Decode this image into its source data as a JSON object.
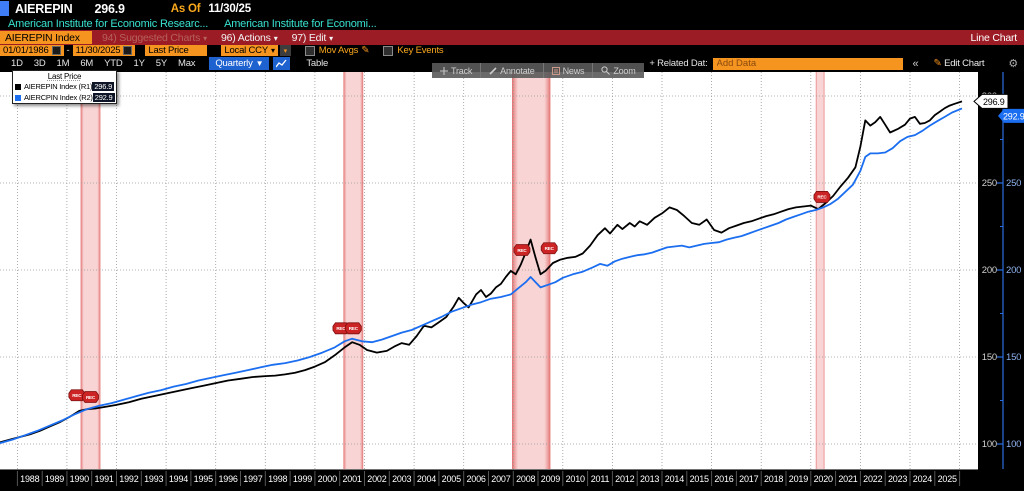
{
  "window": {
    "ticker": "AIEREPIN",
    "value": "296.9",
    "as_of_label": "As Of",
    "as_of_date": "11/30/25",
    "descriptions": [
      "American Institute for Economic Researc...",
      "American Institute for Economi..."
    ]
  },
  "menubar": {
    "security_field": "AIEREPIN Index",
    "suggested_charts": "94) Suggested Charts",
    "actions": "96) Actions",
    "edit": "97) Edit",
    "right_label": "Line Chart"
  },
  "toolbar": {
    "date_from": "01/01/1986",
    "date_separator": "-",
    "date_to": "11/30/2025",
    "field": "Last Price",
    "currency": "Local CCY",
    "mov_avgs": "Mov Avgs",
    "key_events": "Key Events"
  },
  "periods": {
    "items": [
      "1D",
      "3D",
      "1M",
      "6M",
      "YTD",
      "1Y",
      "5Y",
      "Max"
    ],
    "frequency": "Quarterly",
    "table": "Table",
    "related_label": "+ Related Dat:",
    "add_data_placeholder": "Add Data",
    "collapse": "«",
    "edit_chart": "Edit Chart"
  },
  "chart_toolbar": {
    "track": "Track",
    "annotate": "Annotate",
    "news": "News",
    "zoom": "Zoom"
  },
  "legend": {
    "title": "Last Price",
    "series": [
      {
        "label": "AIEREPIN Index  (R1)",
        "value": "296.9",
        "color": "#000000"
      },
      {
        "label": "AIERCPIN Index  (R2)",
        "value": "292.9",
        "color": "#1b6ef0"
      }
    ]
  },
  "chart_data": {
    "type": "line",
    "x_domain": [
      1987.3,
      2026.3
    ],
    "ylim": [
      87,
      312
    ],
    "y_ticks": [
      100,
      150,
      200,
      250,
      300
    ],
    "y_minor_ticks": [
      125,
      175,
      225,
      275
    ],
    "x_tick_years": [
      1988,
      1989,
      1990,
      1991,
      1992,
      1993,
      1994,
      1995,
      1996,
      1997,
      1998,
      1999,
      2000,
      2001,
      2002,
      2003,
      2004,
      2005,
      2006,
      2007,
      2008,
      2009,
      2010,
      2011,
      2012,
      2013,
      2014,
      2015,
      2016,
      2017,
      2018,
      2019,
      2020,
      2021,
      2022,
      2023,
      2024,
      2025
    ],
    "grid": "dotted",
    "legend_position": "top-left",
    "band_color": "#f2a8a8",
    "band_edge_color": "#dd5555",
    "rec_marker_label": "REC",
    "recession_bands": [
      [
        1990.55,
        1991.35
      ],
      [
        2001.15,
        2001.95
      ],
      [
        2007.95,
        2009.5
      ],
      [
        2020.2,
        2020.55
      ]
    ],
    "rec_markers": [
      [
        1990.4,
        128
      ],
      [
        1990.95,
        127
      ],
      [
        2001.05,
        166.5
      ],
      [
        2001.55,
        166.5
      ],
      [
        2008.35,
        211.5
      ],
      [
        2009.45,
        212.5
      ],
      [
        2020.45,
        242
      ]
    ],
    "axes": {
      "r1_label_color": "#cfcfcf",
      "r2_label_color": "#8fb4f0",
      "r2_axis_color": "#2b6fe0"
    },
    "series": [
      {
        "name": "AIEREPIN Index",
        "axis": "R1",
        "color": "#000000",
        "last_price": 296.9,
        "points": [
          [
            1987.3,
            101
          ],
          [
            1987.7,
            102.5
          ],
          [
            1988.1,
            104
          ],
          [
            1988.5,
            105.5
          ],
          [
            1988.9,
            107.5
          ],
          [
            1989.3,
            110
          ],
          [
            1989.7,
            112.5
          ],
          [
            1990.1,
            115.5
          ],
          [
            1990.5,
            119
          ],
          [
            1990.8,
            120
          ],
          [
            1991.2,
            120.5
          ],
          [
            1991.6,
            121.5
          ],
          [
            1992,
            122.5
          ],
          [
            1992.5,
            124
          ],
          [
            1993,
            126
          ],
          [
            1993.5,
            127.5
          ],
          [
            1994,
            129
          ],
          [
            1994.5,
            130.5
          ],
          [
            1995,
            132
          ],
          [
            1995.5,
            133.5
          ],
          [
            1996,
            135
          ],
          [
            1996.5,
            136.5
          ],
          [
            1997,
            137.5
          ],
          [
            1997.5,
            138.5
          ],
          [
            1998,
            139
          ],
          [
            1998.4,
            139.3
          ],
          [
            1998.8,
            140
          ],
          [
            1999.2,
            141
          ],
          [
            1999.6,
            142.5
          ],
          [
            2000,
            144.5
          ],
          [
            2000.4,
            147
          ],
          [
            2000.8,
            151
          ],
          [
            2001.2,
            155.5
          ],
          [
            2001.5,
            158.5
          ],
          [
            2001.8,
            157
          ],
          [
            2002.1,
            154
          ],
          [
            2002.5,
            152.5
          ],
          [
            2002.9,
            153.5
          ],
          [
            2003.2,
            156
          ],
          [
            2003.5,
            158
          ],
          [
            2003.8,
            157
          ],
          [
            2004.1,
            162
          ],
          [
            2004.4,
            168
          ],
          [
            2004.7,
            167
          ],
          [
            2005,
            170
          ],
          [
            2005.3,
            173
          ],
          [
            2005.6,
            179
          ],
          [
            2005.8,
            184
          ],
          [
            2006,
            181
          ],
          [
            2006.2,
            178.5
          ],
          [
            2006.5,
            186
          ],
          [
            2006.7,
            188.5
          ],
          [
            2006.9,
            184.5
          ],
          [
            2007.1,
            186.5
          ],
          [
            2007.3,
            190
          ],
          [
            2007.5,
            192
          ],
          [
            2007.7,
            196
          ],
          [
            2007.9,
            199.5
          ],
          [
            2008.1,
            197.5
          ],
          [
            2008.3,
            203
          ],
          [
            2008.5,
            210
          ],
          [
            2008.7,
            217.5
          ],
          [
            2008.9,
            207
          ],
          [
            2009.1,
            197.5
          ],
          [
            2009.3,
            199.5
          ],
          [
            2009.6,
            204
          ],
          [
            2009.9,
            206
          ],
          [
            2010.2,
            207
          ],
          [
            2010.5,
            207.5
          ],
          [
            2010.8,
            209.5
          ],
          [
            2011.1,
            214
          ],
          [
            2011.4,
            220
          ],
          [
            2011.7,
            224
          ],
          [
            2011.9,
            221
          ],
          [
            2012.2,
            226
          ],
          [
            2012.4,
            223.5
          ],
          [
            2012.7,
            227
          ],
          [
            2012.9,
            225
          ],
          [
            2013.1,
            228
          ],
          [
            2013.4,
            226
          ],
          [
            2013.7,
            230
          ],
          [
            2014,
            232.5
          ],
          [
            2014.3,
            236
          ],
          [
            2014.6,
            234.5
          ],
          [
            2014.9,
            231
          ],
          [
            2015.2,
            227
          ],
          [
            2015.5,
            226
          ],
          [
            2015.8,
            229
          ],
          [
            2016.1,
            223
          ],
          [
            2016.4,
            221.5
          ],
          [
            2016.7,
            224
          ],
          [
            2017,
            225.5
          ],
          [
            2017.3,
            227
          ],
          [
            2017.6,
            228
          ],
          [
            2017.9,
            229.5
          ],
          [
            2018.2,
            231
          ],
          [
            2018.5,
            232
          ],
          [
            2018.8,
            233.5
          ],
          [
            2019.1,
            235
          ],
          [
            2019.4,
            236
          ],
          [
            2019.7,
            236.5
          ],
          [
            2020,
            237
          ],
          [
            2020.3,
            235
          ],
          [
            2020.6,
            238.5
          ],
          [
            2020.9,
            242.5
          ],
          [
            2021.2,
            248
          ],
          [
            2021.5,
            253
          ],
          [
            2021.8,
            259
          ],
          [
            2022,
            271
          ],
          [
            2022.2,
            286
          ],
          [
            2022.4,
            283
          ],
          [
            2022.6,
            285
          ],
          [
            2022.8,
            288
          ],
          [
            2023,
            283.5
          ],
          [
            2023.2,
            279
          ],
          [
            2023.5,
            281
          ],
          [
            2023.8,
            283.5
          ],
          [
            2024,
            287
          ],
          [
            2024.2,
            288
          ],
          [
            2024.4,
            284
          ],
          [
            2024.6,
            284.5
          ],
          [
            2024.8,
            286
          ],
          [
            2025,
            289
          ],
          [
            2025.2,
            291
          ],
          [
            2025.4,
            293
          ],
          [
            2025.6,
            294.5
          ],
          [
            2025.8,
            295.5
          ],
          [
            2026.1,
            296.9
          ]
        ]
      },
      {
        "name": "AIERCPIN Index",
        "axis": "R2",
        "color": "#1b6ef0",
        "last_price": 292.9,
        "points": [
          [
            1987.3,
            100.5
          ],
          [
            1987.8,
            102.5
          ],
          [
            1988.3,
            105
          ],
          [
            1988.8,
            107.5
          ],
          [
            1989.3,
            110.5
          ],
          [
            1989.8,
            113.5
          ],
          [
            1990.3,
            117
          ],
          [
            1990.8,
            120
          ],
          [
            1991.3,
            122
          ],
          [
            1991.8,
            123.5
          ],
          [
            1992.3,
            125.5
          ],
          [
            1992.8,
            127.5
          ],
          [
            1993.3,
            129.5
          ],
          [
            1993.8,
            131
          ],
          [
            1994.3,
            133
          ],
          [
            1994.8,
            134.5
          ],
          [
            1995.3,
            136.5
          ],
          [
            1995.8,
            138
          ],
          [
            1996.3,
            139.5
          ],
          [
            1996.8,
            141
          ],
          [
            1997.3,
            142.5
          ],
          [
            1997.8,
            144
          ],
          [
            1998.3,
            145.5
          ],
          [
            1998.8,
            146.5
          ],
          [
            1999.3,
            148
          ],
          [
            1999.8,
            150
          ],
          [
            2000.3,
            152.5
          ],
          [
            2000.8,
            155.5
          ],
          [
            2001.2,
            159
          ],
          [
            2001.5,
            160.5
          ],
          [
            2001.9,
            159
          ],
          [
            2002.3,
            158.5
          ],
          [
            2002.7,
            160
          ],
          [
            2003.1,
            162
          ],
          [
            2003.5,
            164
          ],
          [
            2003.9,
            165.5
          ],
          [
            2004.3,
            168
          ],
          [
            2004.7,
            170.5
          ],
          [
            2005.1,
            173
          ],
          [
            2005.5,
            176
          ],
          [
            2005.9,
            178
          ],
          [
            2006.3,
            180
          ],
          [
            2006.7,
            181.5
          ],
          [
            2007.1,
            183.5
          ],
          [
            2007.5,
            184.5
          ],
          [
            2007.9,
            186
          ],
          [
            2008.2,
            189.5
          ],
          [
            2008.5,
            193
          ],
          [
            2008.7,
            196
          ],
          [
            2008.9,
            193
          ],
          [
            2009.1,
            190
          ],
          [
            2009.4,
            191.5
          ],
          [
            2009.7,
            193
          ],
          [
            2010,
            195.5
          ],
          [
            2010.4,
            197.5
          ],
          [
            2010.8,
            199
          ],
          [
            2011.2,
            201.5
          ],
          [
            2011.5,
            203.5
          ],
          [
            2011.8,
            202.5
          ],
          [
            2012.1,
            205
          ],
          [
            2012.4,
            206.5
          ],
          [
            2012.7,
            207.5
          ],
          [
            2013,
            208.5
          ],
          [
            2013.3,
            209
          ],
          [
            2013.6,
            210
          ],
          [
            2013.9,
            211.5
          ],
          [
            2014.2,
            213
          ],
          [
            2014.5,
            213.5
          ],
          [
            2014.8,
            214
          ],
          [
            2015.1,
            213
          ],
          [
            2015.4,
            214
          ],
          [
            2015.7,
            215
          ],
          [
            2016,
            215.5
          ],
          [
            2016.3,
            216
          ],
          [
            2016.6,
            217.5
          ],
          [
            2016.9,
            218.5
          ],
          [
            2017.2,
            219.5
          ],
          [
            2017.5,
            221
          ],
          [
            2017.8,
            222.5
          ],
          [
            2018.1,
            224
          ],
          [
            2018.4,
            225.5
          ],
          [
            2018.7,
            227
          ],
          [
            2019,
            229
          ],
          [
            2019.3,
            230.5
          ],
          [
            2019.6,
            232
          ],
          [
            2019.9,
            233.5
          ],
          [
            2020.2,
            234.5
          ],
          [
            2020.5,
            236
          ],
          [
            2020.8,
            238
          ],
          [
            2021.1,
            241
          ],
          [
            2021.4,
            245
          ],
          [
            2021.7,
            249
          ],
          [
            2022,
            257
          ],
          [
            2022.2,
            265
          ],
          [
            2022.4,
            267
          ],
          [
            2022.7,
            267
          ],
          [
            2023,
            267.5
          ],
          [
            2023.3,
            270
          ],
          [
            2023.6,
            274
          ],
          [
            2023.9,
            276.5
          ],
          [
            2024.2,
            277.5
          ],
          [
            2024.5,
            280
          ],
          [
            2024.8,
            283
          ],
          [
            2025.1,
            285.5
          ],
          [
            2025.4,
            288
          ],
          [
            2025.7,
            290.5
          ],
          [
            2026.1,
            292.9
          ]
        ]
      }
    ]
  }
}
